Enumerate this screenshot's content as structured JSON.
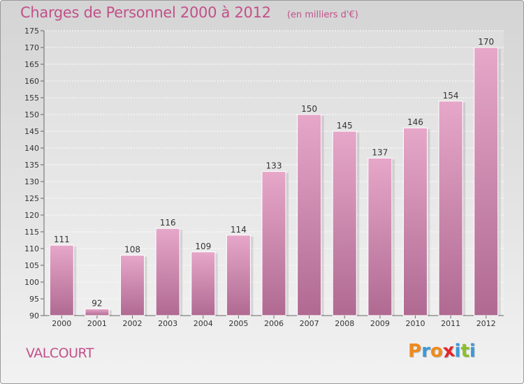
{
  "colors": {
    "accent": "#c2508a",
    "bar_top": "#e6a7c9",
    "bar_bottom": "#b06a92",
    "logo": [
      "#f08a1c",
      "#3a9ad9",
      "#f08a1c",
      "#e2262e",
      "#3a9ad9",
      "#8bbf2a",
      "#3a9ad9"
    ]
  },
  "header": {
    "title": "Charges de Personnel 2000 à 2012",
    "subtitle": "(en milliers d'€)"
  },
  "footer": {
    "commune": "VALCOURT",
    "brand_letters": [
      "P",
      "r",
      "o",
      "x",
      "i",
      "t",
      "i"
    ]
  },
  "chart_data": {
    "type": "bar",
    "title": "Charges de Personnel 2000 à 2012",
    "subtitle": "(en milliers d'€)",
    "categories": [
      "2000",
      "2001",
      "2002",
      "2003",
      "2004",
      "2005",
      "2006",
      "2007",
      "2008",
      "2009",
      "2010",
      "2011",
      "2012"
    ],
    "values": [
      111,
      92,
      108,
      116,
      109,
      114,
      133,
      150,
      145,
      137,
      146,
      154,
      170
    ],
    "ylim": [
      90,
      175
    ],
    "yticks": [
      90,
      95,
      100,
      105,
      110,
      115,
      120,
      125,
      130,
      135,
      140,
      145,
      150,
      155,
      160,
      165,
      170,
      175
    ],
    "grid": true,
    "data_labels": true
  }
}
